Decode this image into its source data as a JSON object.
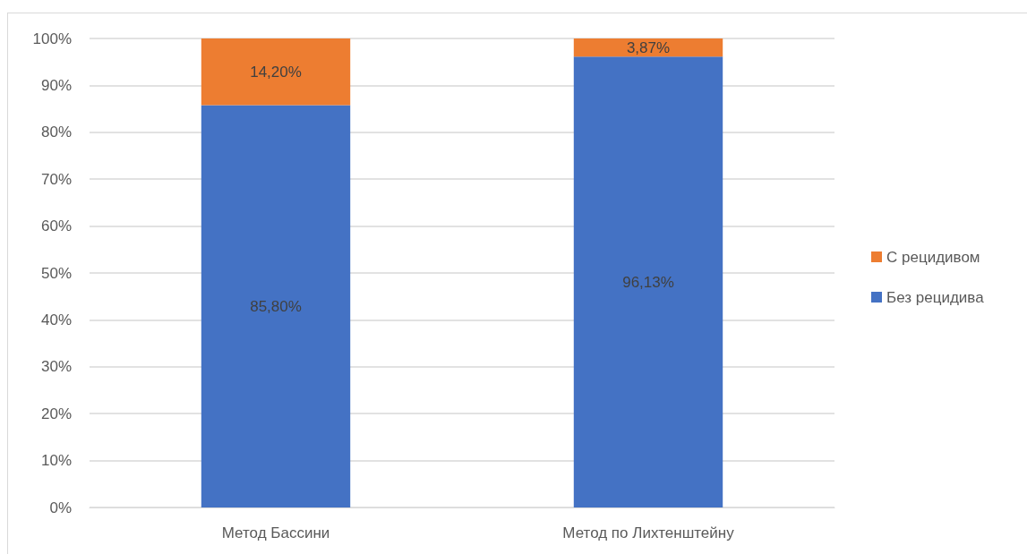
{
  "chart_data": {
    "type": "bar",
    "stacked": true,
    "categories": [
      "Метод Бассини",
      "Метод по Лихтенштейну"
    ],
    "series": [
      {
        "name": "Без рецидива",
        "color": "#4472c4",
        "values": [
          85.8,
          96.13
        ],
        "value_labels": [
          "85,80%",
          "96,13%"
        ]
      },
      {
        "name": "С рецидивом",
        "color": "#ed7d31",
        "values": [
          14.2,
          3.87
        ],
        "value_labels": [
          "14,20%",
          "3,87%"
        ]
      }
    ],
    "ylim": [
      0,
      100
    ],
    "yticks": [
      {
        "value": 0,
        "label": "0%"
      },
      {
        "value": 10,
        "label": "10%"
      },
      {
        "value": 20,
        "label": "20%"
      },
      {
        "value": 30,
        "label": "30%"
      },
      {
        "value": 40,
        "label": "40%"
      },
      {
        "value": 50,
        "label": "50%"
      },
      {
        "value": 60,
        "label": "60%"
      },
      {
        "value": 70,
        "label": "70%"
      },
      {
        "value": 80,
        "label": "80%"
      },
      {
        "value": 90,
        "label": "90%"
      },
      {
        "value": 100,
        "label": "100%"
      }
    ],
    "grid": "y",
    "legend": "right"
  }
}
